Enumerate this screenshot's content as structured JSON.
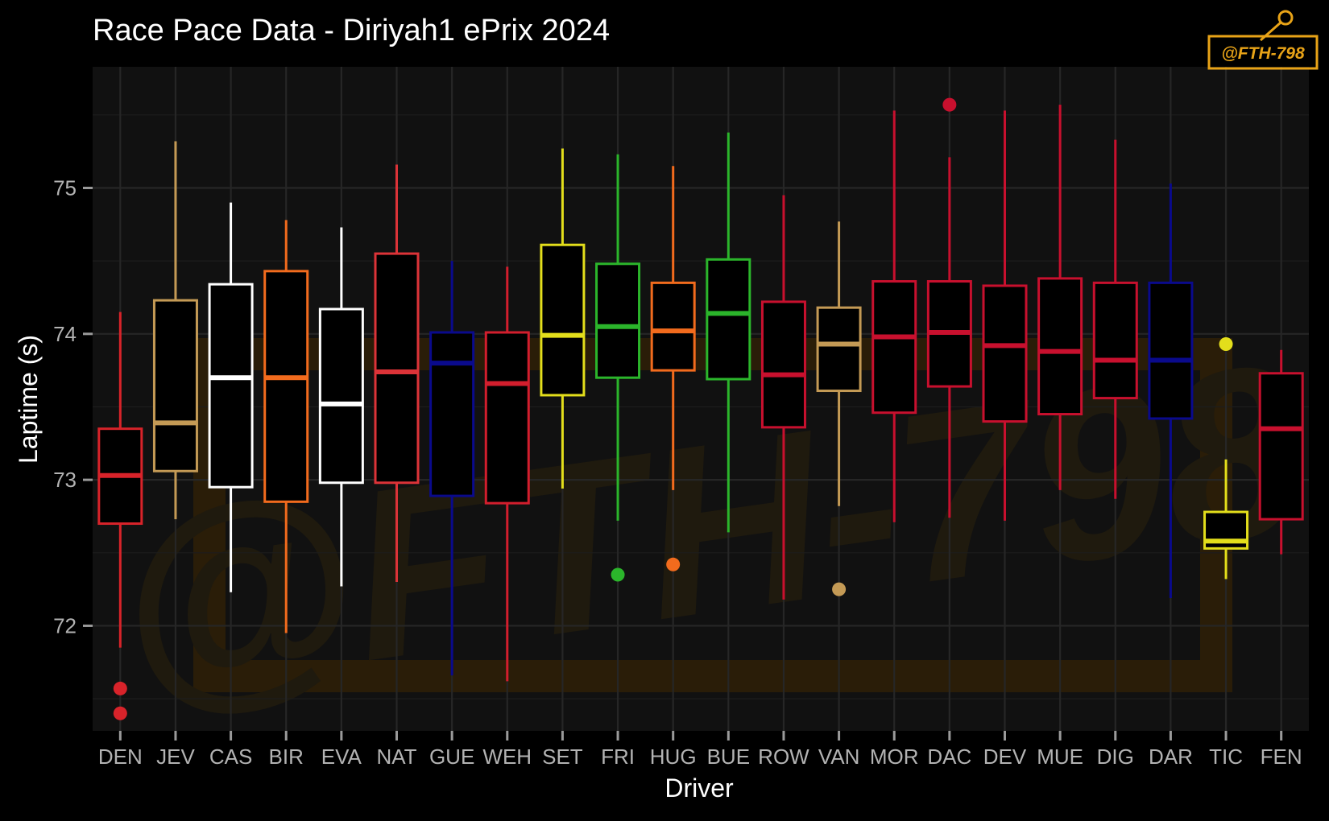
{
  "chart_data": {
    "type": "boxplot",
    "title": "Race Pace Data - Diriyah1 ePrix 2024",
    "xlabel": "Driver",
    "ylabel": "Laptime (s)",
    "ylim": [
      71.28,
      75.83
    ],
    "yticks": [
      72,
      73,
      74,
      75
    ],
    "grid": true,
    "legend": "none",
    "watermark": "@FTH-798",
    "series": [
      {
        "name": "DEN",
        "color": "#d8232a",
        "min": 71.85,
        "q1": 72.7,
        "median": 73.03,
        "q3": 73.35,
        "max": 74.15,
        "outliers": [
          71.57,
          71.4
        ]
      },
      {
        "name": "JEV",
        "color": "#c49a55",
        "min": 72.73,
        "q1": 73.06,
        "median": 73.39,
        "q3": 74.23,
        "max": 75.32,
        "outliers": []
      },
      {
        "name": "CAS",
        "color": "#ffffff",
        "min": 72.23,
        "q1": 72.95,
        "median": 73.7,
        "q3": 74.34,
        "max": 74.9,
        "outliers": []
      },
      {
        "name": "BIR",
        "color": "#f26b1d",
        "min": 71.95,
        "q1": 72.85,
        "median": 73.7,
        "q3": 74.43,
        "max": 74.78,
        "outliers": []
      },
      {
        "name": "EVA",
        "color": "#ffffff",
        "min": 72.27,
        "q1": 72.98,
        "median": 73.52,
        "q3": 74.17,
        "max": 74.73,
        "outliers": []
      },
      {
        "name": "NAT",
        "color": "#dc3338",
        "min": 72.3,
        "q1": 72.98,
        "median": 73.74,
        "q3": 74.55,
        "max": 75.16,
        "outliers": []
      },
      {
        "name": "GUE",
        "color": "#0a0a8c",
        "min": 71.66,
        "q1": 72.89,
        "median": 73.8,
        "q3": 74.01,
        "max": 74.5,
        "outliers": []
      },
      {
        "name": "WEH",
        "color": "#d21e2d",
        "min": 71.62,
        "q1": 72.84,
        "median": 73.66,
        "q3": 74.01,
        "max": 74.46,
        "outliers": []
      },
      {
        "name": "SET",
        "color": "#e3de1b",
        "min": 72.94,
        "q1": 73.58,
        "median": 73.99,
        "q3": 74.61,
        "max": 75.27,
        "outliers": []
      },
      {
        "name": "FRI",
        "color": "#2bb52b",
        "min": 72.72,
        "q1": 73.7,
        "median": 74.05,
        "q3": 74.48,
        "max": 75.23,
        "outliers": [
          72.35
        ]
      },
      {
        "name": "HUG",
        "color": "#f26b1d",
        "min": 72.93,
        "q1": 73.75,
        "median": 74.02,
        "q3": 74.35,
        "max": 75.15,
        "outliers": [
          72.42
        ]
      },
      {
        "name": "BUE",
        "color": "#2bb52b",
        "min": 72.64,
        "q1": 73.69,
        "median": 74.14,
        "q3": 74.51,
        "max": 75.38,
        "outliers": []
      },
      {
        "name": "ROW",
        "color": "#c8102e",
        "min": 72.18,
        "q1": 73.36,
        "median": 73.72,
        "q3": 74.22,
        "max": 74.95,
        "outliers": []
      },
      {
        "name": "VAN",
        "color": "#c49a55",
        "min": 72.82,
        "q1": 73.61,
        "median": 73.93,
        "q3": 74.18,
        "max": 74.77,
        "outliers": [
          72.25
        ]
      },
      {
        "name": "MOR",
        "color": "#c8102e",
        "min": 72.71,
        "q1": 73.46,
        "median": 73.98,
        "q3": 74.36,
        "max": 75.53,
        "outliers": []
      },
      {
        "name": "DAC",
        "color": "#c8102e",
        "min": 72.74,
        "q1": 73.64,
        "median": 74.01,
        "q3": 74.36,
        "max": 75.21,
        "outliers": [
          75.57
        ]
      },
      {
        "name": "DEV",
        "color": "#c8102e",
        "min": 72.72,
        "q1": 73.4,
        "median": 73.92,
        "q3": 74.33,
        "max": 75.53,
        "outliers": []
      },
      {
        "name": "MUE",
        "color": "#c8102e",
        "min": 72.93,
        "q1": 73.45,
        "median": 73.88,
        "q3": 74.38,
        "max": 75.57,
        "outliers": []
      },
      {
        "name": "DIG",
        "color": "#c8102e",
        "min": 72.87,
        "q1": 73.56,
        "median": 73.82,
        "q3": 74.35,
        "max": 75.33,
        "outliers": []
      },
      {
        "name": "DAR",
        "color": "#0a0a8c",
        "min": 72.19,
        "q1": 73.42,
        "median": 73.82,
        "q3": 74.35,
        "max": 75.03,
        "outliers": []
      },
      {
        "name": "TIC",
        "color": "#e3de1b",
        "min": 72.32,
        "q1": 72.53,
        "median": 72.58,
        "q3": 72.78,
        "max": 73.14,
        "outliers": [
          73.93
        ]
      },
      {
        "name": "FEN",
        "color": "#c8102e",
        "min": 72.49,
        "q1": 72.73,
        "median": 73.35,
        "q3": 73.73,
        "max": 73.89,
        "outliers": []
      }
    ]
  }
}
